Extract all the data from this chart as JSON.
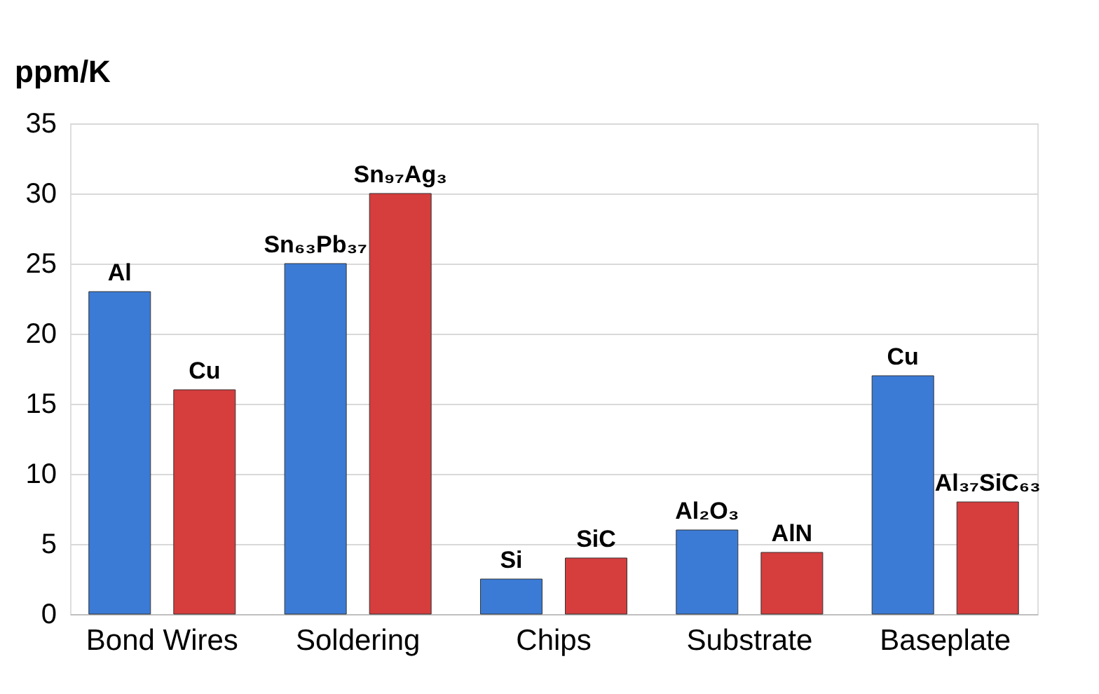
{
  "chart_data": {
    "type": "bar",
    "ylabel": "ppm/K",
    "categories": [
      "Bond Wires",
      "Soldering",
      "Chips",
      "Substrate",
      "Baseplate"
    ],
    "series": [
      {
        "color": "#3b7bd6",
        "values": [
          23,
          25,
          2.5,
          6,
          17
        ],
        "value_labels": [
          "Al",
          "Sn₆₃Pb₃₇",
          "Si",
          "Al₂O₃",
          "Cu"
        ]
      },
      {
        "color": "#d63d3d",
        "values": [
          16,
          30,
          4,
          4.4,
          8
        ],
        "value_labels": [
          "Cu",
          "Sn₉₇Ag₃",
          "SiC",
          "AlN",
          "Al₃₇SiC₆₃"
        ]
      }
    ],
    "ylim": [
      0,
      35
    ],
    "yticks": [
      0,
      5,
      10,
      15,
      20,
      25,
      30,
      35
    ],
    "grid": "y",
    "legend": false
  }
}
